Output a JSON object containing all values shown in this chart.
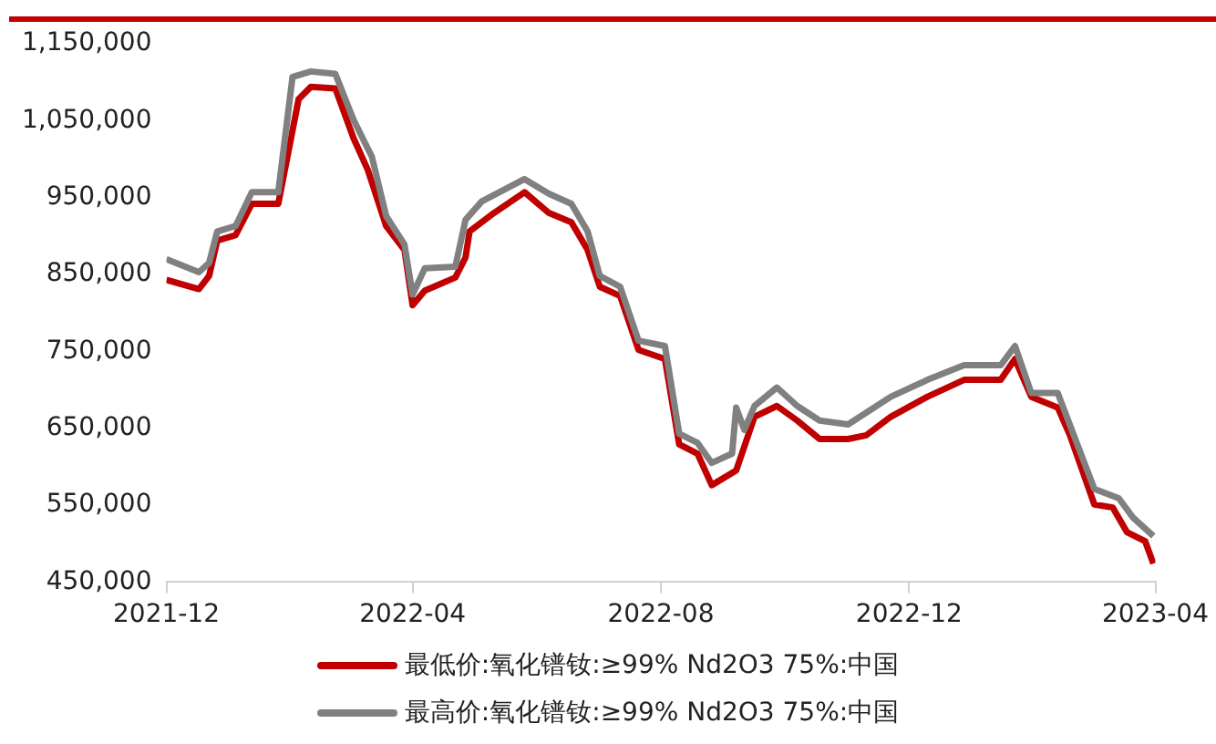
{
  "chart_data": {
    "type": "line",
    "legend": "bottom",
    "marker": "none",
    "line_style": "solid",
    "grid": false,
    "xlim": [
      "2021-12",
      "2023-04"
    ],
    "xticks": [
      "2021-12",
      "2022-04",
      "2022-08",
      "2022-12",
      "2023-04"
    ],
    "ylim": [
      450000,
      1150000
    ],
    "yticks": [
      {
        "value": 450000,
        "label": "450,000"
      },
      {
        "value": 550000,
        "label": "550,000"
      },
      {
        "value": 650000,
        "label": "650,000"
      },
      {
        "value": 750000,
        "label": "750,000"
      },
      {
        "value": 850000,
        "label": "850,000"
      },
      {
        "value": 950000,
        "label": "950,000"
      },
      {
        "value": 1050000,
        "label": "1,050,000"
      },
      {
        "value": 1150000,
        "label": "1,150,000"
      }
    ],
    "series": [
      {
        "name": "最低价:氧化镨钕:≥99% Nd2O3 75%:中国",
        "color": "#c00000",
        "x": [
          "2021-12-01",
          "2021-12-17",
          "2021-12-22",
          "2021-12-26",
          "2022-01-04",
          "2022-01-12",
          "2022-01-25",
          "2022-02-04",
          "2022-02-10",
          "2022-02-22",
          "2022-03-03",
          "2022-03-10",
          "2022-03-19",
          "2022-03-28",
          "2022-04-01",
          "2022-04-07",
          "2022-04-22",
          "2022-04-27",
          "2022-04-29",
          "2022-05-11",
          "2022-05-26",
          "2022-06-07",
          "2022-06-18",
          "2022-06-26",
          "2022-07-02",
          "2022-07-12",
          "2022-07-21",
          "2022-08-03",
          "2022-08-10",
          "2022-08-19",
          "2022-08-26",
          "2022-09-07",
          "2022-09-16",
          "2022-09-27",
          "2022-10-07",
          "2022-10-18",
          "2022-11-01",
          "2022-11-10",
          "2022-11-22",
          "2022-12-10",
          "2022-12-28",
          "2023-01-15",
          "2023-01-22",
          "2023-01-30",
          "2023-02-12",
          "2023-02-18",
          "2023-03-02",
          "2023-03-11",
          "2023-03-18",
          "2023-03-27",
          "2023-03-31"
        ],
        "values": [
          843000,
          831000,
          848000,
          894000,
          901000,
          942000,
          942000,
          1078000,
          1094000,
          1092000,
          1027000,
          986000,
          913000,
          882000,
          810000,
          829000,
          846000,
          872000,
          906000,
          930000,
          957000,
          930000,
          918000,
          882000,
          834000,
          822000,
          752000,
          740000,
          629000,
          617000,
          576000,
          595000,
          665000,
          679000,
          660000,
          636000,
          636000,
          641000,
          665000,
          691000,
          713000,
          713000,
          740000,
          691000,
          677000,
          641000,
          551000,
          547000,
          515000,
          503000,
          474000
        ]
      },
      {
        "name": "最高价:氧化镨钕:≥99% Nd2O3 75%:中国",
        "color": "#808080",
        "x": [
          "2021-12-01",
          "2021-12-17",
          "2021-12-22",
          "2021-12-26",
          "2022-01-04",
          "2022-01-12",
          "2022-01-25",
          "2022-02-01",
          "2022-02-10",
          "2022-02-22",
          "2022-03-03",
          "2022-03-12",
          "2022-03-19",
          "2022-03-28",
          "2022-04-01",
          "2022-04-07",
          "2022-04-22",
          "2022-04-27",
          "2022-05-05",
          "2022-05-26",
          "2022-06-07",
          "2022-06-18",
          "2022-06-26",
          "2022-07-02",
          "2022-07-12",
          "2022-07-21",
          "2022-08-03",
          "2022-08-10",
          "2022-08-19",
          "2022-08-26",
          "2022-09-05",
          "2022-09-07",
          "2022-09-11",
          "2022-09-16",
          "2022-09-27",
          "2022-10-07",
          "2022-10-18",
          "2022-11-01",
          "2022-11-22",
          "2022-12-10",
          "2022-12-28",
          "2023-01-15",
          "2023-01-22",
          "2023-01-30",
          "2023-02-12",
          "2023-03-02",
          "2023-03-14",
          "2023-03-21",
          "2023-03-31"
        ],
        "values": [
          870000,
          853000,
          865000,
          906000,
          913000,
          957000,
          957000,
          1107000,
          1114000,
          1111000,
          1051000,
          1003000,
          926000,
          889000,
          824000,
          858000,
          860000,
          921000,
          945000,
          974000,
          955000,
          942000,
          906000,
          848000,
          834000,
          764000,
          757000,
          643000,
          631000,
          605000,
          617000,
          677000,
          648000,
          679000,
          703000,
          679000,
          660000,
          655000,
          691000,
          713000,
          732000,
          732000,
          757000,
          696000,
          696000,
          571000,
          559000,
          534000,
          510000
        ]
      }
    ]
  }
}
